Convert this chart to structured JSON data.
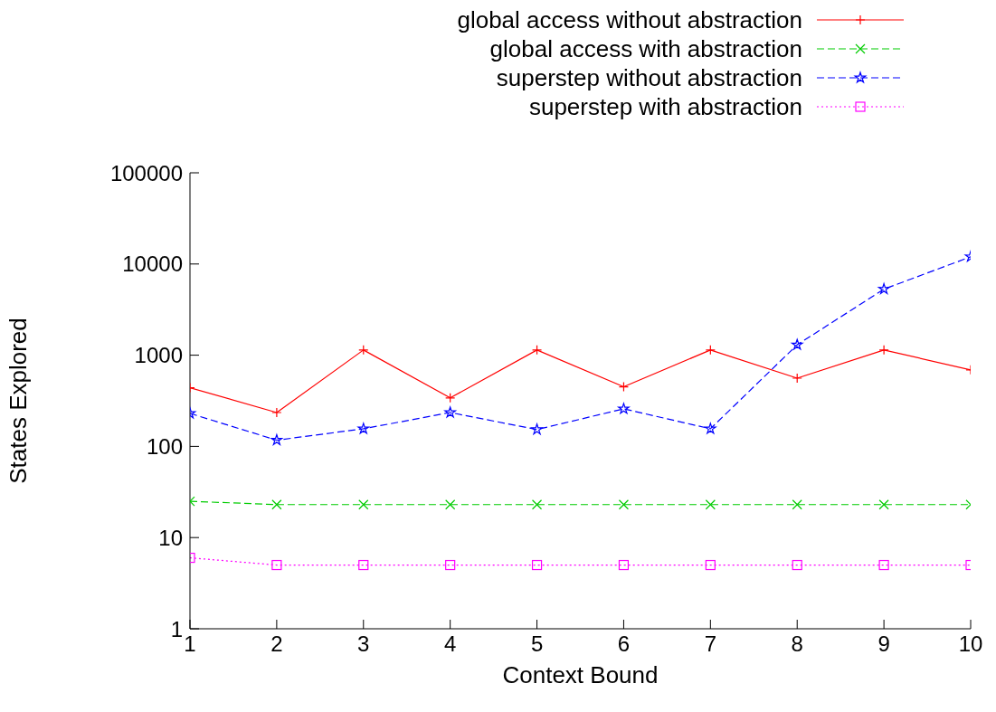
{
  "chart_data": {
    "type": "line",
    "xlabel": "Context Bound",
    "ylabel": "States Explored",
    "x": [
      1,
      2,
      3,
      4,
      5,
      6,
      7,
      8,
      9,
      10
    ],
    "xlim": [
      1,
      10
    ],
    "xticks": [
      1,
      2,
      3,
      4,
      5,
      6,
      7,
      8,
      9,
      10
    ],
    "ylim": [
      1,
      100000
    ],
    "yticks": [
      1,
      10,
      100,
      1000,
      10000,
      100000
    ],
    "log": "y",
    "grid": false,
    "legend": "top right",
    "series": [
      {
        "name": "global access without abstraction",
        "color": "#ff0000",
        "marker": "cross",
        "line_style": "solid",
        "values": [
          440,
          235,
          1140,
          340,
          1140,
          450,
          1140,
          560,
          1140,
          690
        ]
      },
      {
        "name": "global access with abstraction",
        "color": "#00cc00",
        "marker": "x",
        "line_style": "dashed",
        "values": [
          25,
          23,
          23,
          23,
          23,
          23,
          23,
          23,
          23,
          23
        ]
      },
      {
        "name": "superstep without abstraction",
        "color": "#0000ff",
        "marker": "star",
        "line_style": "dashed",
        "values": [
          230,
          117,
          156,
          235,
          153,
          258,
          156,
          1300,
          5300,
          12000
        ]
      },
      {
        "name": "superstep with abstraction",
        "color": "#ff00ff",
        "marker": "square",
        "line_style": "dotted",
        "values": [
          6,
          5,
          5,
          5,
          5,
          5,
          5,
          5,
          5,
          5
        ]
      }
    ]
  }
}
